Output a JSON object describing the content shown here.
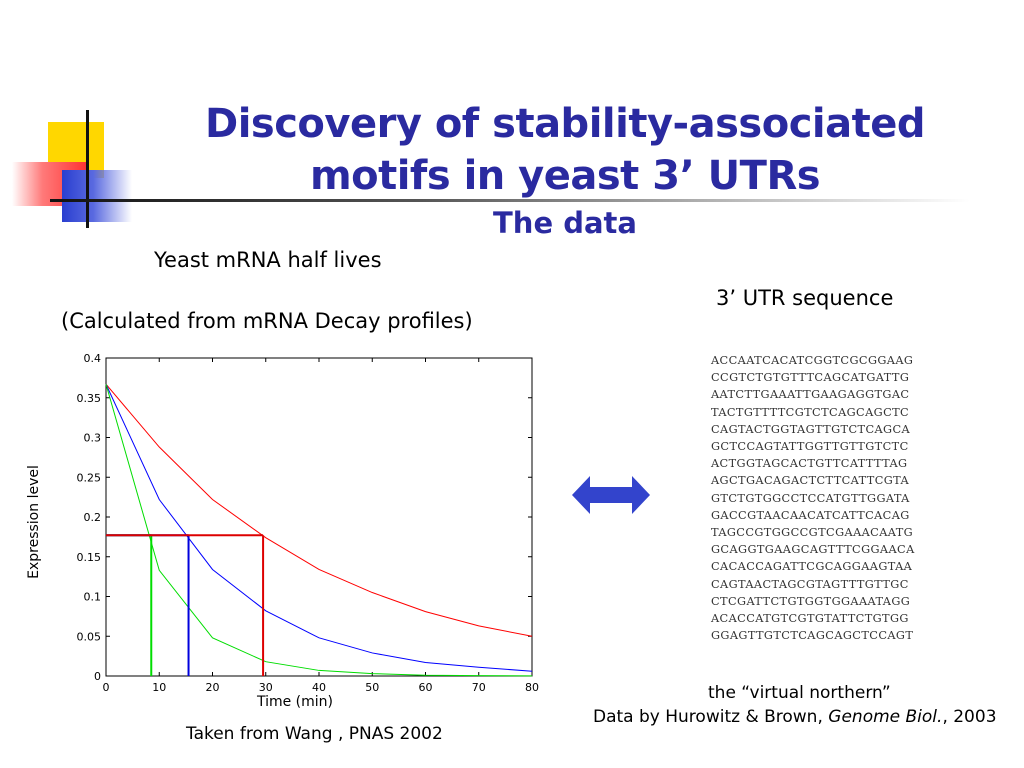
{
  "slide": {
    "title_line1": "Discovery of stability-associated",
    "title_line2": "motifs in yeast 3’ UTRs",
    "subtitle": "The data",
    "halflives_label": "Yeast mRNA half lives",
    "calc_label": "(Calculated from mRNA Decay profiles)",
    "utr_label": "3’ UTR sequence",
    "source_left": "Taken from Wang , PNAS 2002",
    "virtual_label": "the “virtual northern”",
    "data_by_prefix": "Data by Hurowitz & Brown, ",
    "data_by_journal": "Genome Biol.",
    "data_by_suffix": ", 2003",
    "arrow_color": "#3344cc",
    "title_color": "#2a2aa0"
  },
  "sequences": [
    "ACCAATCACATCGGTCGCGGAAG",
    "CCGTCTGTGTTTCAGCATGATTG",
    "AATCTTGAAATTGAAGAGGTGAC",
    "TACTGTTTTCGTCTCAGCAGCTC",
    "CAGTACTGGTAGTTGTCTCAGCA",
    "GCTCCAGTATTGGTTGTTGTCTC",
    "ACTGGTAGCACTGTTCATTTTAG",
    "AGCTGACAGACTCTTCATTCGTA",
    "GTCTGTGGCCTCCATGTTGGATA",
    "GACCGTAACAACATCATTCACAG",
    "TAGCCGTGGCCGTCGAAACAATG",
    "GCAGGTGAAGCAGTTTCGGAACA",
    "CACACCAGATTCGCAGGAAGTAA",
    "CAGTAACTAGCGTAGTTTGTTGC",
    "CTCGATTCTGTGGTGGAAATAGG",
    "ACACCATGTCGTGTATTCTGTGG",
    "GGAGTTGTCTCAGCAGCTCCAGT"
  ],
  "chart_data": {
    "type": "line",
    "xlabel": "Time (min)",
    "ylabel": "Expression level",
    "xlim": [
      0,
      80
    ],
    "ylim": [
      0,
      0.4
    ],
    "xticks": [
      0,
      10,
      20,
      30,
      40,
      50,
      60,
      70,
      80
    ],
    "yticks": [
      0,
      0.05,
      0.1,
      0.15,
      0.2,
      0.25,
      0.3,
      0.35,
      0.4
    ],
    "ytick_labels": [
      "0",
      "0.05",
      "0.1",
      "0.15",
      "0.2",
      "0.25",
      "0.3",
      "0.35",
      "0.4"
    ],
    "grid": false,
    "series": [
      {
        "color": "#ff0000",
        "x": [
          0,
          10,
          20,
          30,
          40,
          50,
          60,
          70,
          80
        ],
        "values": [
          0.367,
          0.288,
          0.222,
          0.174,
          0.134,
          0.105,
          0.081,
          0.063,
          0.05
        ]
      },
      {
        "color": "#0000ff",
        "x": [
          0,
          10,
          20,
          30,
          40,
          50,
          60,
          70,
          80
        ],
        "values": [
          0.367,
          0.222,
          0.134,
          0.082,
          0.048,
          0.029,
          0.017,
          0.011,
          0.006
        ]
      },
      {
        "color": "#00dd00",
        "x": [
          0,
          10,
          20,
          30,
          40,
          50,
          60,
          70,
          80
        ],
        "values": [
          0.367,
          0.133,
          0.048,
          0.018,
          0.007,
          0.003,
          0.001,
          0.0005,
          0.0002
        ]
      }
    ],
    "halflife_markers": [
      {
        "color": "#00dd00",
        "x": 8.5,
        "y": 0.177
      },
      {
        "color": "#0000dd",
        "x": 15.5,
        "y": 0.177
      },
      {
        "color": "#dd0000",
        "x": 29.5,
        "y": 0.177
      }
    ]
  }
}
